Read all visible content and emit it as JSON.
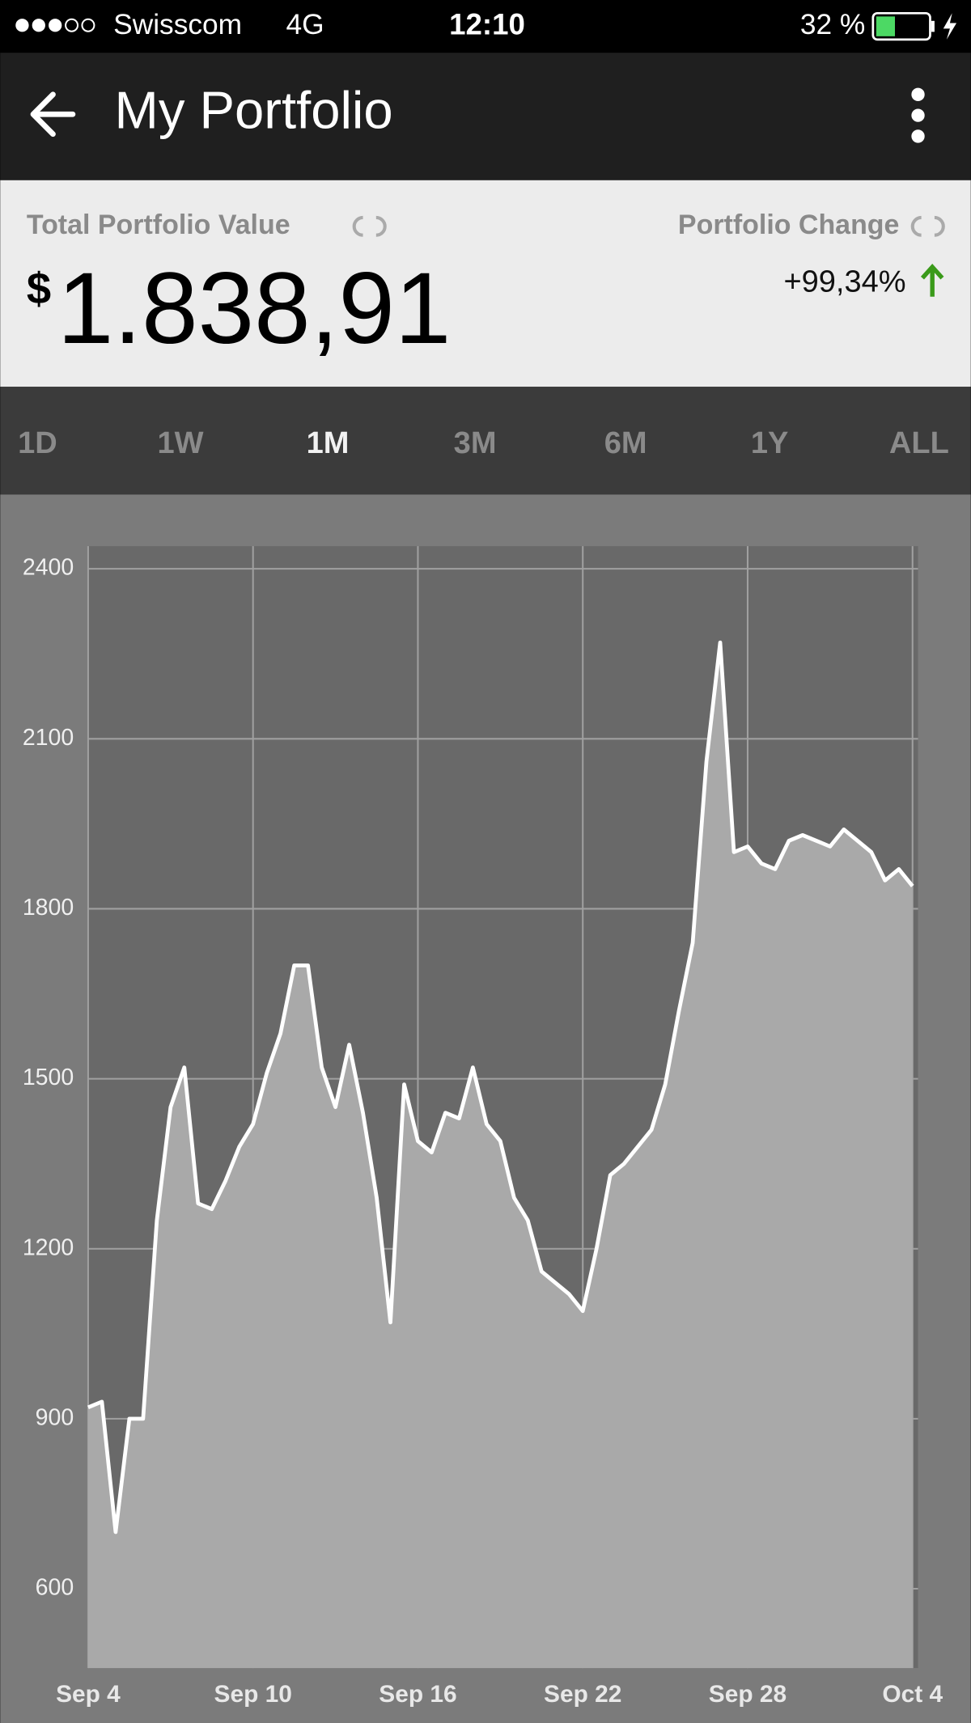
{
  "status_bar": {
    "carrier": "Swisscom",
    "network": "4G",
    "time": "12:10",
    "battery": "32 %"
  },
  "header": {
    "title": "My Portfolio"
  },
  "summary": {
    "total_label": "Total Portfolio Value",
    "currency": "$",
    "total_value": "1.838,91",
    "change_label": "Portfolio Change",
    "change_value": "+99,34%"
  },
  "tabs": {
    "items": [
      "1D",
      "1W",
      "1M",
      "3M",
      "6M",
      "1Y",
      "ALL"
    ],
    "active": "1M"
  },
  "chart_data": {
    "type": "area",
    "categories": [
      "Sep 4",
      null,
      null,
      null,
      null,
      null,
      null,
      null,
      null,
      null,
      null,
      null,
      "Sep 10",
      null,
      null,
      null,
      null,
      null,
      null,
      null,
      null,
      null,
      null,
      null,
      "Sep 16",
      null,
      null,
      null,
      null,
      null,
      null,
      null,
      null,
      null,
      null,
      null,
      "Sep 22",
      null,
      null,
      null,
      null,
      null,
      null,
      null,
      null,
      null,
      null,
      null,
      "Sep 28",
      null,
      null,
      null,
      null,
      null,
      null,
      null,
      null,
      null,
      null,
      null,
      "Oct 4"
    ],
    "values": [
      920,
      930,
      700,
      900,
      900,
      1250,
      1450,
      1520,
      1280,
      1270,
      1320,
      1380,
      1420,
      1510,
      1580,
      1700,
      1700,
      1520,
      1450,
      1560,
      1440,
      1290,
      1070,
      1490,
      1390,
      1370,
      1440,
      1430,
      1520,
      1420,
      1390,
      1290,
      1250,
      1160,
      1140,
      1120,
      1090,
      1200,
      1330,
      1350,
      1380,
      1410,
      1490,
      1620,
      1740,
      2060,
      2270,
      1900,
      1910,
      1880,
      1870,
      1920,
      1930,
      1920,
      1910,
      1940,
      1920,
      1900,
      1850,
      1870,
      1840
    ],
    "color": "#ffffff",
    "fill": "#a9a9a9",
    "ylim": [
      460,
      2440
    ],
    "yticks": [
      600,
      900,
      1200,
      1500,
      1800,
      2100,
      2400
    ],
    "grid": true
  }
}
